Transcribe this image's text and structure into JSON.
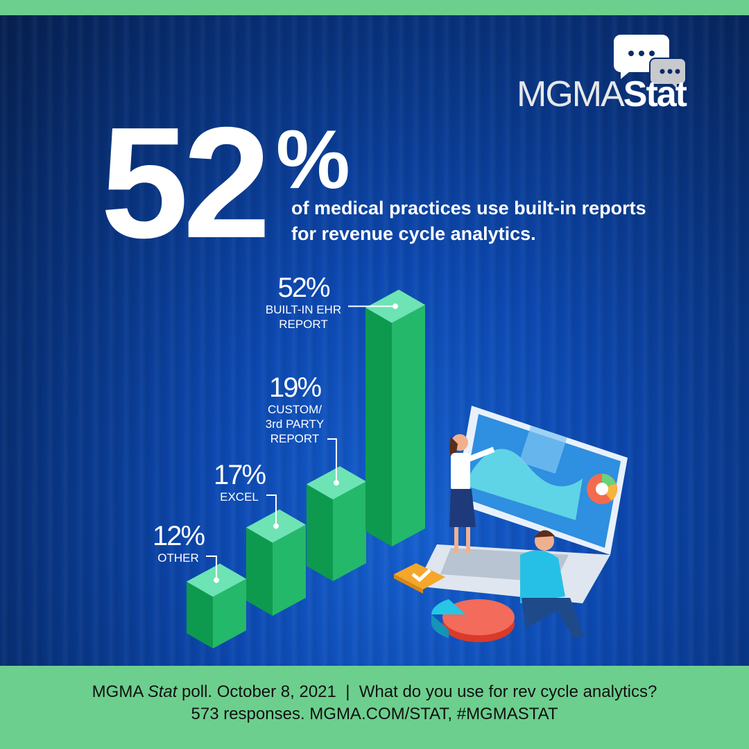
{
  "logo": {
    "text_light": "MGMA",
    "text_bold": "Stat"
  },
  "headline": {
    "value": "52",
    "percent": "%",
    "line1": "of medical practices use built-in reports",
    "line2": "for revenue cycle analytics."
  },
  "chart_data": {
    "type": "bar",
    "categories": [
      "OTHER",
      "EXCEL",
      "CUSTOM/ 3rd PARTY REPORT",
      "BUILT-IN EHR REPORT"
    ],
    "values": [
      12,
      17,
      19,
      52
    ],
    "value_labels": [
      "12%",
      "17%",
      "19%",
      "52%"
    ],
    "label_lines": [
      [
        "OTHER"
      ],
      [
        "EXCEL"
      ],
      [
        "CUSTOM/",
        "3rd PARTY",
        "REPORT"
      ],
      [
        "BUILT-IN EHR",
        "REPORT"
      ]
    ],
    "unit": "%",
    "style": "3d isometric bars",
    "colors": {
      "top": "#6ee3b4",
      "left": "#0e9a4e",
      "right": "#24b86a"
    }
  },
  "footer": {
    "line1_a": "MGMA ",
    "line1_italic": "Stat",
    "line1_b": " poll. October 8, 2021  |  What do you use for rev cycle analytics?",
    "line2": "573 responses. MGMA.COM/STAT, #MGMASTAT"
  },
  "colors": {
    "green_band": "#6dcf8e",
    "background": "#0a3c9c"
  }
}
